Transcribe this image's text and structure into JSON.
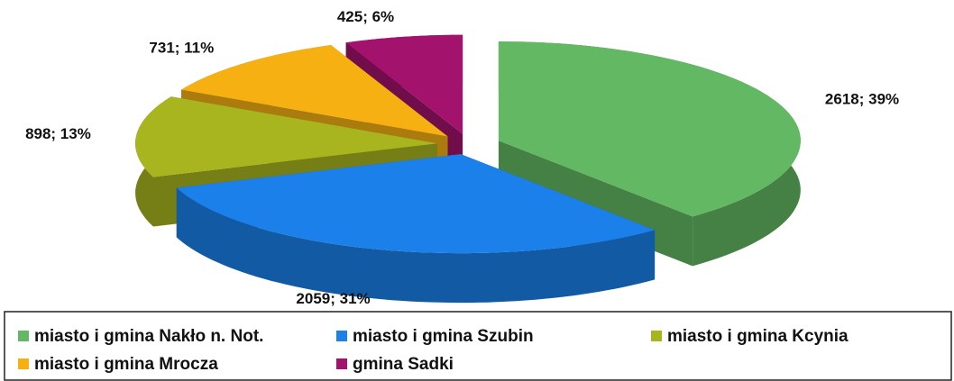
{
  "chart_data": {
    "type": "pie3d",
    "categories": [
      "miasto i gmina Nakło n. Not.",
      "miasto i gmina Szubin",
      "miasto i gmina Kcynia",
      "miasto i gmina Mrocza",
      "gmina Sadki"
    ],
    "values": [
      2618,
      2059,
      898,
      731,
      425
    ],
    "value_labels": [
      "2618; 39%",
      "2059; 31%",
      "898; 13%",
      "731; 11%",
      "425; 6%"
    ],
    "colors": [
      "#63b863",
      "#1b80ea",
      "#a8b51e",
      "#f6b012",
      "#a3126d"
    ],
    "legend": "bottom"
  }
}
